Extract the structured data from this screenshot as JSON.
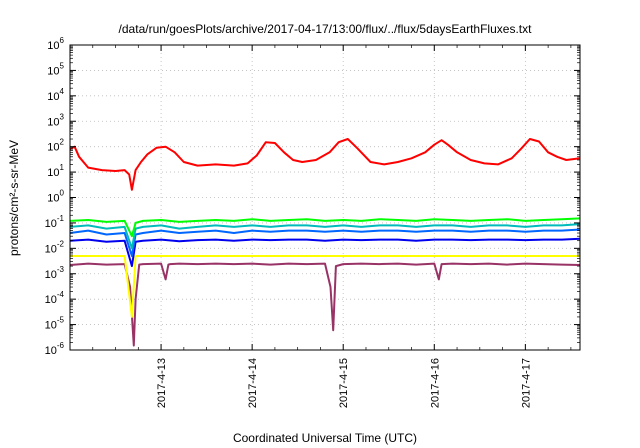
{
  "chart_data": {
    "type": "line",
    "title": "/data/run/goesPlots/archive/2017-04-17/13:00/flux/../flux/5daysEarthFluxes.txt",
    "xlabel": "Coordinated Universal Time (UTC)",
    "ylabel": "protons/cm²-s-sr-MeV",
    "yscale": "log",
    "ylim": [
      1e-06,
      1000000.0
    ],
    "xlim": [
      0,
      5.6
    ],
    "grid": true,
    "y_ticks": [
      {
        "value": 1e-06,
        "base": "10",
        "exp": "-6"
      },
      {
        "value": 1e-05,
        "base": "10",
        "exp": "-5"
      },
      {
        "value": 0.0001,
        "base": "10",
        "exp": "-4"
      },
      {
        "value": 0.001,
        "base": "10",
        "exp": "-3"
      },
      {
        "value": 0.01,
        "base": "10",
        "exp": "-2"
      },
      {
        "value": 0.1,
        "base": "10",
        "exp": "-1"
      },
      {
        "value": 1.0,
        "base": "10",
        "exp": "0"
      },
      {
        "value": 10.0,
        "base": "10",
        "exp": "1"
      },
      {
        "value": 100.0,
        "base": "10",
        "exp": "2"
      },
      {
        "value": 1000.0,
        "base": "10",
        "exp": "3"
      },
      {
        "value": 10000.0,
        "base": "10",
        "exp": "4"
      },
      {
        "value": 100000.0,
        "base": "10",
        "exp": "5"
      },
      {
        "value": 1000000.0,
        "base": "10",
        "exp": "6"
      }
    ],
    "x_ticks": [
      {
        "value": 1.0,
        "label": "2017-4-13"
      },
      {
        "value": 2.0,
        "label": "2017-4-14"
      },
      {
        "value": 3.0,
        "label": "2017-4-15"
      },
      {
        "value": 4.0,
        "label": "2017-4-16"
      },
      {
        "value": 5.0,
        "label": "2017-4-17"
      }
    ],
    "series": [
      {
        "color": "#ff0000",
        "width": 2,
        "x": [
          0,
          0.05,
          0.1,
          0.2,
          0.35,
          0.5,
          0.6,
          0.65,
          0.68,
          0.72,
          0.78,
          0.85,
          0.95,
          1.05,
          1.15,
          1.25,
          1.4,
          1.6,
          1.8,
          1.95,
          2.05,
          2.15,
          2.25,
          2.35,
          2.45,
          2.55,
          2.7,
          2.85,
          2.95,
          3.05,
          3.15,
          3.3,
          3.45,
          3.6,
          3.75,
          3.9,
          4.0,
          4.08,
          4.15,
          4.25,
          4.4,
          4.55,
          4.7,
          4.85,
          4.95,
          5.05,
          5.15,
          5.25,
          5.35,
          5.45,
          5.6
        ],
        "y": [
          80,
          100,
          40,
          15,
          12,
          11,
          12,
          8,
          2,
          12,
          25,
          50,
          90,
          100,
          60,
          25,
          18,
          20,
          18,
          22,
          45,
          150,
          140,
          60,
          30,
          25,
          30,
          60,
          150,
          200,
          90,
          25,
          20,
          25,
          35,
          60,
          120,
          180,
          120,
          60,
          30,
          22,
          20,
          35,
          80,
          200,
          160,
          60,
          40,
          30,
          35
        ]
      },
      {
        "color": "#00ff00",
        "width": 2,
        "x": [
          0,
          0.2,
          0.4,
          0.6,
          0.68,
          0.72,
          0.8,
          1.0,
          1.2,
          1.4,
          1.6,
          1.8,
          2.0,
          2.2,
          2.4,
          2.6,
          2.8,
          3.0,
          3.2,
          3.4,
          3.6,
          3.8,
          4.0,
          4.2,
          4.4,
          4.6,
          4.8,
          5.0,
          5.2,
          5.4,
          5.6
        ],
        "y": [
          0.12,
          0.13,
          0.11,
          0.12,
          0.03,
          0.1,
          0.12,
          0.13,
          0.11,
          0.12,
          0.13,
          0.12,
          0.14,
          0.12,
          0.13,
          0.14,
          0.12,
          0.13,
          0.12,
          0.14,
          0.13,
          0.12,
          0.14,
          0.13,
          0.12,
          0.13,
          0.14,
          0.12,
          0.13,
          0.14,
          0.15
        ]
      },
      {
        "color": "#00bbbb",
        "width": 2,
        "x": [
          0,
          0.2,
          0.4,
          0.6,
          0.68,
          0.72,
          0.8,
          1.0,
          1.2,
          1.4,
          1.6,
          1.8,
          2.0,
          2.2,
          2.4,
          2.6,
          2.8,
          3.0,
          3.2,
          3.4,
          3.6,
          3.8,
          4.0,
          4.2,
          4.4,
          4.6,
          4.8,
          5.0,
          5.2,
          5.4,
          5.6
        ],
        "y": [
          0.07,
          0.08,
          0.06,
          0.07,
          0.01,
          0.06,
          0.07,
          0.08,
          0.06,
          0.07,
          0.08,
          0.07,
          0.08,
          0.07,
          0.08,
          0.08,
          0.07,
          0.08,
          0.07,
          0.08,
          0.08,
          0.07,
          0.08,
          0.08,
          0.07,
          0.08,
          0.08,
          0.07,
          0.08,
          0.08,
          0.09
        ]
      },
      {
        "color": "#0066ff",
        "width": 2,
        "x": [
          0,
          0.2,
          0.4,
          0.6,
          0.68,
          0.72,
          0.8,
          1.0,
          1.2,
          1.4,
          1.6,
          1.8,
          2.0,
          2.2,
          2.4,
          2.6,
          2.8,
          3.0,
          3.2,
          3.4,
          3.6,
          3.8,
          4.0,
          4.2,
          4.4,
          4.6,
          4.8,
          5.0,
          5.2,
          5.4,
          5.6
        ],
        "y": [
          0.04,
          0.05,
          0.035,
          0.04,
          0.005,
          0.035,
          0.04,
          0.05,
          0.04,
          0.045,
          0.05,
          0.04,
          0.05,
          0.045,
          0.05,
          0.05,
          0.045,
          0.05,
          0.045,
          0.05,
          0.05,
          0.045,
          0.05,
          0.05,
          0.045,
          0.05,
          0.05,
          0.045,
          0.05,
          0.05,
          0.055
        ]
      },
      {
        "color": "#0000ee",
        "width": 2,
        "x": [
          0,
          0.2,
          0.4,
          0.6,
          0.68,
          0.72,
          0.8,
          1.0,
          1.2,
          1.4,
          1.6,
          1.8,
          2.0,
          2.2,
          2.4,
          2.6,
          2.8,
          3.0,
          3.2,
          3.4,
          3.6,
          3.8,
          4.0,
          4.2,
          4.4,
          4.6,
          4.8,
          5.0,
          5.2,
          5.4,
          5.6
        ],
        "y": [
          0.02,
          0.022,
          0.018,
          0.02,
          0.002,
          0.018,
          0.02,
          0.022,
          0.019,
          0.021,
          0.022,
          0.02,
          0.022,
          0.021,
          0.022,
          0.022,
          0.02,
          0.022,
          0.021,
          0.022,
          0.022,
          0.02,
          0.022,
          0.022,
          0.021,
          0.022,
          0.022,
          0.021,
          0.022,
          0.022,
          0.024
        ]
      },
      {
        "color": "#ffff00",
        "width": 2,
        "x": [
          0,
          0.4,
          0.6,
          0.68,
          0.72,
          0.76,
          0.8,
          1.0,
          2.0,
          3.0,
          4.0,
          5.0,
          5.6
        ],
        "y": [
          0.005,
          0.005,
          0.005,
          2e-05,
          0.005,
          0.005,
          0.005,
          0.005,
          0.005,
          0.005,
          0.005,
          0.005,
          0.005
        ]
      },
      {
        "color": "#993366",
        "width": 2,
        "x": [
          0,
          0.2,
          0.4,
          0.6,
          0.66,
          0.7,
          0.72,
          0.76,
          0.8,
          1.0,
          1.05,
          1.08,
          1.1,
          1.2,
          1.4,
          1.6,
          1.8,
          2.0,
          2.2,
          2.4,
          2.6,
          2.8,
          2.86,
          2.89,
          2.92,
          3.0,
          3.2,
          3.4,
          3.6,
          3.8,
          4.0,
          4.05,
          4.08,
          4.2,
          4.4,
          4.6,
          4.8,
          5.0,
          5.2,
          5.4,
          5.6
        ],
        "y": [
          0.0022,
          0.0025,
          0.0023,
          0.0024,
          0.0003,
          1.5e-06,
          0.0001,
          0.0023,
          0.0024,
          0.0025,
          0.0006,
          0.0023,
          0.0024,
          0.0025,
          0.0024,
          0.0025,
          0.0024,
          0.0025,
          0.0023,
          0.0025,
          0.0024,
          0.0025,
          0.0003,
          6e-06,
          0.002,
          0.0024,
          0.0025,
          0.0024,
          0.0025,
          0.0023,
          0.0025,
          0.0006,
          0.0024,
          0.0025,
          0.0024,
          0.0025,
          0.0023,
          0.0025,
          0.0024,
          0.0023,
          0.0022
        ]
      }
    ]
  }
}
